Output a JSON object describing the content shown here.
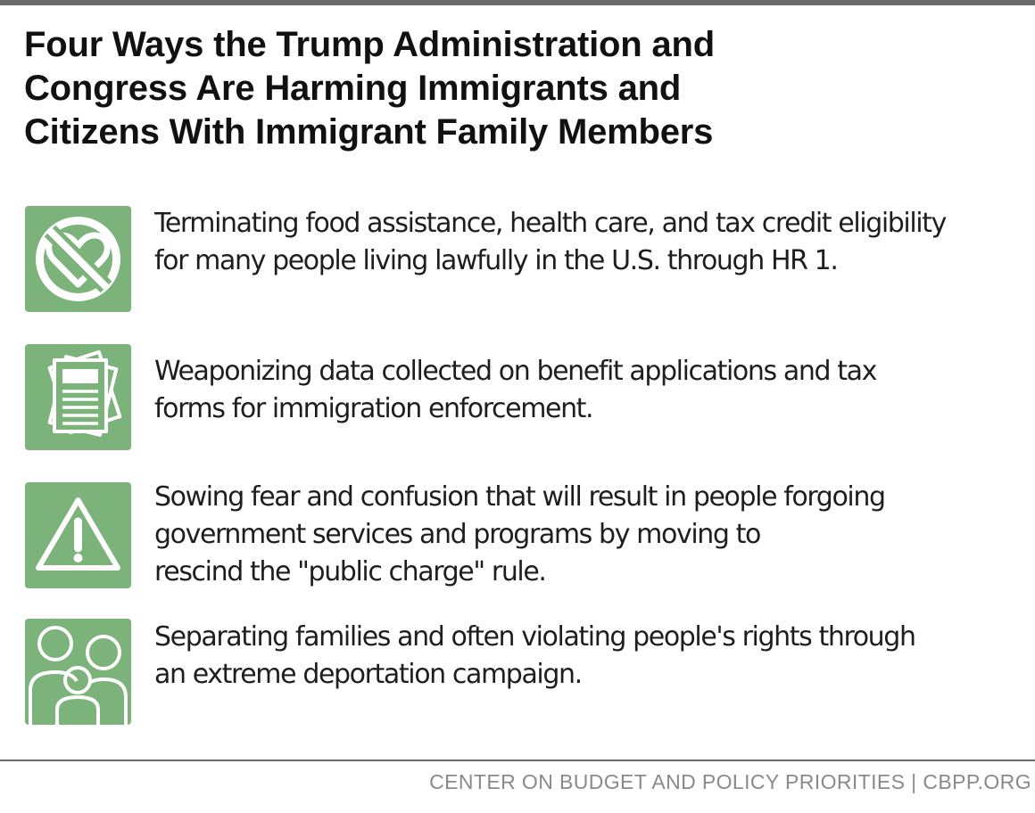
{
  "title": {
    "lines": [
      "Four Ways the Trump Administration and",
      "Congress Are Harming Immigrants and",
      "Citizens With Immigrant Family Members"
    ]
  },
  "items": [
    {
      "icon": "no-heart-icon",
      "lines": [
        "Terminating food assistance, health care, and tax credit eligibility",
        "for many people living lawfully in the U.S. through HR 1."
      ]
    },
    {
      "icon": "documents-icon",
      "lines": [
        "Weaponizing data collected on benefit applications and tax",
        "forms for immigration enforcement."
      ]
    },
    {
      "icon": "warning-icon",
      "lines": [
        "Sowing fear and confusion that will result in people forgoing",
        "government services and programs by moving to",
        "rescind the \"public charge\" rule."
      ]
    },
    {
      "icon": "family-icon",
      "lines": [
        "Separating families and often violating people's rights through",
        "an extreme deportation campaign."
      ]
    }
  ],
  "footer": {
    "text": "CENTER ON BUDGET AND POLICY PRIORITIES | CBPP.ORG"
  },
  "colors": {
    "icon_background": "#7cb37b",
    "icon_foreground": "#ffffff",
    "title_text": "#111111",
    "body_text": "#1e1e1e",
    "footer_text": "#8a8a8a",
    "rule": "#6a6a6a"
  }
}
